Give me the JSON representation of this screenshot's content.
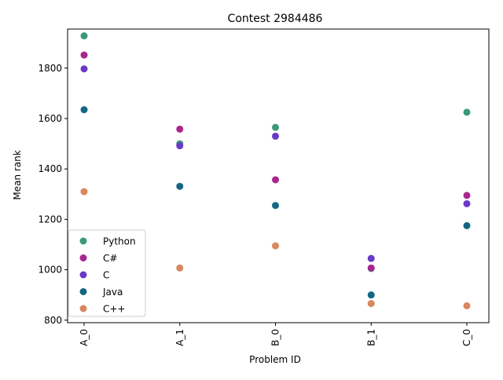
{
  "chart_data": {
    "type": "scatter",
    "title": "Contest 2984486",
    "xlabel": "Problem ID",
    "ylabel": "Mean rank",
    "categories": [
      "A_0",
      "A_1",
      "B_0",
      "B_1",
      "C_0"
    ],
    "ylim": [
      790,
      1955
    ],
    "yticks": [
      800,
      1000,
      1200,
      1400,
      1600,
      1800
    ],
    "grid": false,
    "legend_position": "lower-left",
    "series": [
      {
        "name": "Python",
        "color": "#3a9a78",
        "values": [
          1928,
          1500,
          1565,
          1005,
          1625
        ]
      },
      {
        "name": "C#",
        "color": "#a8268e",
        "values": [
          1852,
          1558,
          1357,
          1007,
          1295
        ]
      },
      {
        "name": "C",
        "color": "#6a39c9",
        "values": [
          1797,
          1492,
          1530,
          1045,
          1262
        ]
      },
      {
        "name": "Java",
        "color": "#156682",
        "values": [
          1635,
          1331,
          1255,
          900,
          1175
        ]
      },
      {
        "name": "C++",
        "color": "#d9875f",
        "values": [
          1310,
          1007,
          1095,
          866,
          857
        ]
      }
    ]
  }
}
